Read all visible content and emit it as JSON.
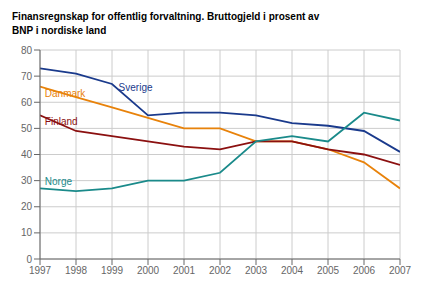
{
  "chart_data": {
    "type": "line",
    "title": "Finansregnskap for offentlig forvaltning. Bruttogjeld i prosent av\nBNP i nordiske land",
    "x": [
      1997,
      1998,
      1999,
      2000,
      2001,
      2002,
      2003,
      2004,
      2005,
      2006,
      2007
    ],
    "series": [
      {
        "name": "Sverige",
        "color": "#1a3a8c",
        "values": [
          73,
          71,
          67,
          55,
          56,
          56,
          55,
          52,
          51,
          49,
          41
        ]
      },
      {
        "name": "Danmark",
        "color": "#e8820a",
        "values": [
          66,
          62,
          58,
          54,
          50,
          50,
          45,
          45,
          42,
          37,
          27
        ]
      },
      {
        "name": "Finland",
        "color": "#8b1010",
        "values": [
          55,
          49,
          47,
          45,
          43,
          42,
          45,
          45,
          42,
          40,
          36
        ]
      },
      {
        "name": "Norge",
        "color": "#1a8a8a",
        "values": [
          27,
          26,
          27,
          30,
          30,
          33,
          45,
          47,
          45,
          56,
          53
        ]
      }
    ],
    "annotations": [
      {
        "text": "Sverige",
        "x": 1999.1,
        "y": 65.5,
        "color": "#1a3a8c"
      },
      {
        "text": "Danmark",
        "x": 1997.05,
        "y": 63.5,
        "color": "#e8820a"
      },
      {
        "text": "Finland",
        "x": 1997.05,
        "y": 52.5,
        "color": "#8b1010"
      },
      {
        "text": "Norge",
        "x": 1997.05,
        "y": 29.5,
        "color": "#1a8a8a"
      }
    ],
    "xlim": [
      1997,
      2007
    ],
    "xticks": [
      1997,
      1998,
      1999,
      2000,
      2001,
      2002,
      2003,
      2004,
      2005,
      2006,
      2007
    ],
    "ylim": [
      0,
      80
    ],
    "yticks": [
      0,
      10,
      20,
      30,
      40,
      50,
      60,
      70,
      80
    ],
    "grid": true
  }
}
